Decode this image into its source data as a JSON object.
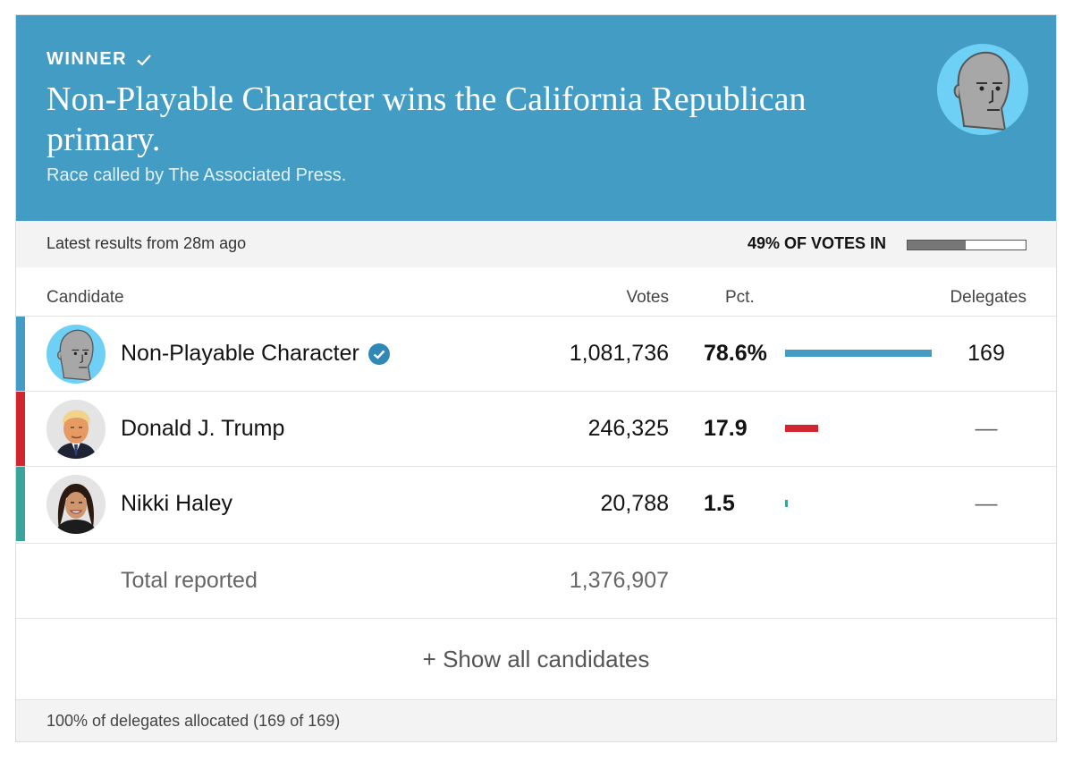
{
  "banner": {
    "winner_label": "WINNER",
    "headline": "Non-Playable Character wins the California Republican primary.",
    "subhead": "Race called by The Associated Press.",
    "avatar_icon": "npc-face-icon",
    "background_color": "#429cc4"
  },
  "status": {
    "latest": "Latest results from 28m ago",
    "votes_in_label": "49% OF VOTES IN",
    "votes_in_fraction": 0.49
  },
  "table": {
    "headers": {
      "candidate": "Candidate",
      "votes": "Votes",
      "pct": "Pct.",
      "delegates": "Delegates"
    },
    "rows": [
      {
        "name": "Non-Playable Character",
        "winner": true,
        "votes": "1,081,736",
        "pct": "78.6%",
        "pct_value": 78.6,
        "delegates": "169",
        "color": "#429cc4",
        "avatar_icon": "npc-face-icon"
      },
      {
        "name": "Donald J. Trump",
        "winner": false,
        "votes": "246,325",
        "pct": "17.9",
        "pct_value": 17.9,
        "delegates": "—",
        "color": "#d0262f",
        "avatar_icon": "trump-portrait-icon"
      },
      {
        "name": "Nikki Haley",
        "winner": false,
        "votes": "20,788",
        "pct": "1.5",
        "pct_value": 1.5,
        "delegates": "—",
        "color": "#3aa39c",
        "avatar_icon": "haley-portrait-icon"
      }
    ],
    "total_label": "Total reported",
    "total_votes": "1,376,907"
  },
  "show_all_label": "+ Show all candidates",
  "footnote": "100% of delegates allocated (169 of 169)"
}
